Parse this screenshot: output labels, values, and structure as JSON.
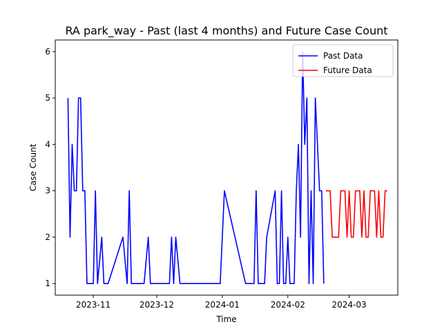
{
  "chart_data": {
    "type": "line",
    "title": "RA park_way - Past (last 4 months) and Future Case Count",
    "xlabel": "Time",
    "ylabel": "Case Count",
    "xlim": [
      "2023-10-14",
      "2024-03-24"
    ],
    "ylim": [
      0.75,
      6.25
    ],
    "x_ticks": [
      {
        "date": "2023-11-01",
        "label": "2023-11"
      },
      {
        "date": "2023-12-01",
        "label": "2023-12"
      },
      {
        "date": "2024-01-01",
        "label": "2024-01"
      },
      {
        "date": "2024-02-01",
        "label": "2024-02"
      },
      {
        "date": "2024-03-01",
        "label": "2024-03"
      }
    ],
    "y_ticks": [
      1,
      2,
      3,
      4,
      5,
      6
    ],
    "grid": false,
    "legend": "top-right",
    "series": [
      {
        "name": "Past Data",
        "color": "#0000ff",
        "points": [
          [
            "2023-10-20",
            5
          ],
          [
            "2023-10-21",
            2
          ],
          [
            "2023-10-22",
            4
          ],
          [
            "2023-10-23",
            3
          ],
          [
            "2023-10-24",
            3
          ],
          [
            "2023-10-25",
            5
          ],
          [
            "2023-10-26",
            5
          ],
          [
            "2023-10-27",
            3
          ],
          [
            "2023-10-28",
            3
          ],
          [
            "2023-10-29",
            1
          ],
          [
            "2023-10-30",
            1
          ],
          [
            "2023-10-31",
            1
          ],
          [
            "2023-11-01",
            1
          ],
          [
            "2023-11-02",
            3
          ],
          [
            "2023-11-03",
            1
          ],
          [
            "2023-11-05",
            2
          ],
          [
            "2023-11-06",
            1
          ],
          [
            "2023-11-08",
            1
          ],
          [
            "2023-11-15",
            2
          ],
          [
            "2023-11-17",
            1
          ],
          [
            "2023-11-18",
            3
          ],
          [
            "2023-11-19",
            1
          ],
          [
            "2023-11-25",
            1
          ],
          [
            "2023-11-27",
            2
          ],
          [
            "2023-11-28",
            1
          ],
          [
            "2023-12-07",
            1
          ],
          [
            "2023-12-08",
            2
          ],
          [
            "2023-12-09",
            1
          ],
          [
            "2023-12-10",
            2
          ],
          [
            "2023-12-12",
            1
          ],
          [
            "2023-12-31",
            1
          ],
          [
            "2024-01-02",
            3
          ],
          [
            "2024-01-12",
            1
          ],
          [
            "2024-01-16",
            1
          ],
          [
            "2024-01-17",
            3
          ],
          [
            "2024-01-18",
            1
          ],
          [
            "2024-01-21",
            1
          ],
          [
            "2024-01-22",
            2
          ],
          [
            "2024-01-26",
            3
          ],
          [
            "2024-01-27",
            1
          ],
          [
            "2024-01-28",
            1
          ],
          [
            "2024-01-29",
            3
          ],
          [
            "2024-01-30",
            1
          ],
          [
            "2024-01-31",
            1
          ],
          [
            "2024-02-01",
            2
          ],
          [
            "2024-02-02",
            1
          ],
          [
            "2024-02-04",
            1
          ],
          [
            "2024-02-05",
            3
          ],
          [
            "2024-02-06",
            4
          ],
          [
            "2024-02-07",
            2
          ],
          [
            "2024-02-08",
            6
          ],
          [
            "2024-02-09",
            4
          ],
          [
            "2024-02-10",
            5
          ],
          [
            "2024-02-11",
            1
          ],
          [
            "2024-02-12",
            3
          ],
          [
            "2024-02-13",
            1
          ],
          [
            "2024-02-14",
            5
          ],
          [
            "2024-02-15",
            4
          ],
          [
            "2024-02-16",
            3
          ],
          [
            "2024-02-17",
            3
          ],
          [
            "2024-02-18",
            1
          ]
        ]
      },
      {
        "name": "Future Data",
        "color": "#ff0000",
        "points": [
          [
            "2024-02-19",
            3
          ],
          [
            "2024-02-20",
            3
          ],
          [
            "2024-02-21",
            3
          ],
          [
            "2024-02-22",
            2
          ],
          [
            "2024-02-23",
            2
          ],
          [
            "2024-02-24",
            2
          ],
          [
            "2024-02-25",
            2
          ],
          [
            "2024-02-26",
            3
          ],
          [
            "2024-02-27",
            3
          ],
          [
            "2024-02-28",
            3
          ],
          [
            "2024-02-29",
            2
          ],
          [
            "2024-03-01",
            3
          ],
          [
            "2024-03-02",
            2
          ],
          [
            "2024-03-03",
            2
          ],
          [
            "2024-03-04",
            3
          ],
          [
            "2024-03-05",
            3
          ],
          [
            "2024-03-06",
            3
          ],
          [
            "2024-03-07",
            2
          ],
          [
            "2024-03-08",
            3
          ],
          [
            "2024-03-09",
            2
          ],
          [
            "2024-03-10",
            2
          ],
          [
            "2024-03-11",
            3
          ],
          [
            "2024-03-12",
            3
          ],
          [
            "2024-03-13",
            3
          ],
          [
            "2024-03-14",
            2
          ],
          [
            "2024-03-15",
            3
          ],
          [
            "2024-03-16",
            2
          ],
          [
            "2024-03-17",
            2
          ],
          [
            "2024-03-18",
            3
          ],
          [
            "2024-03-19",
            3
          ]
        ]
      }
    ]
  }
}
